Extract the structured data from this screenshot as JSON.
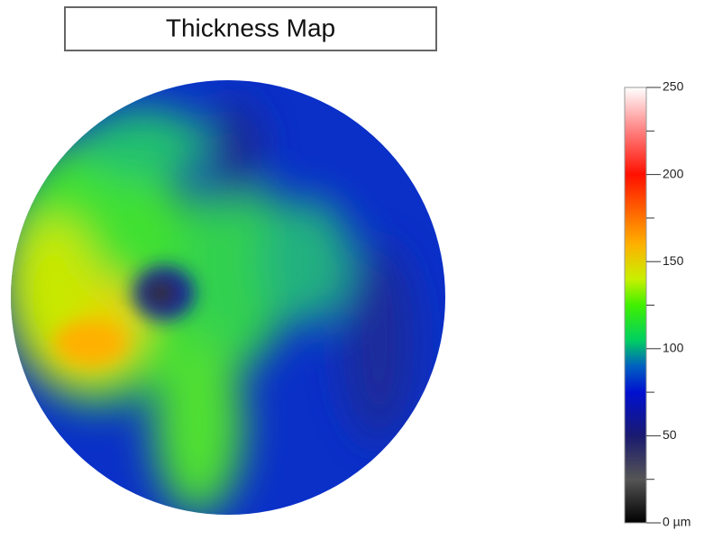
{
  "chart_data": {
    "type": "heatmap",
    "title": "Thickness Map",
    "colorbar": {
      "lim": [
        0,
        250
      ],
      "ticks": [
        {
          "value": 0,
          "label": "0 µm"
        },
        50,
        100,
        150,
        200,
        250
      ],
      "minor_ticks": [
        25,
        75,
        125,
        175,
        225
      ]
    }
  }
}
